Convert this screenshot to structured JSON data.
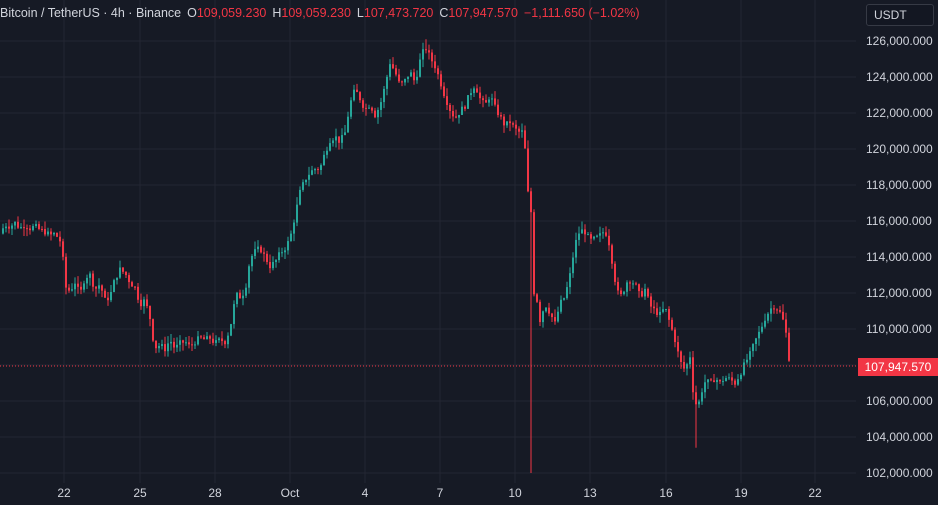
{
  "legend": {
    "symbol": "Bitcoin / TetherUS · 4h · Binance",
    "open_key": "O",
    "open": "109,059.230",
    "high_key": "H",
    "high": "109,059.230",
    "low_key": "L",
    "low": "107,473.720",
    "close_key": "C",
    "close": "107,947.570",
    "change": "−1,111.650 (−1.02%)"
  },
  "currency_button": "USDT",
  "last_price_label": "107,947.570",
  "colors": {
    "background": "#161a25",
    "up": "#26a69a",
    "down": "#f23645",
    "grid": "#232632",
    "axis_text": "#d1d4dc"
  },
  "chart_data": {
    "type": "candlestick",
    "y_axis_ticks": [
      "126,000.000",
      "124,000.000",
      "122,000.000",
      "120,000.000",
      "118,000.000",
      "116,000.000",
      "114,000.000",
      "112,000.000",
      "110,000.000",
      "108,000.000",
      "106,000.000",
      "104,000.000",
      "102,000.000"
    ],
    "x_axis_ticks": [
      "22",
      "25",
      "28",
      "Oct",
      "4",
      "7",
      "10",
      "13",
      "16",
      "19",
      "22"
    ],
    "ylim": [
      101200,
      127300
    ],
    "last_price": 107947.57,
    "price_path_close": [
      [
        0,
        115300
      ],
      [
        5,
        115800
      ],
      [
        10,
        115700
      ],
      [
        15,
        115900
      ],
      [
        20,
        115600
      ],
      [
        25,
        115800
      ],
      [
        30,
        115600
      ],
      [
        35,
        115700
      ],
      [
        40,
        115500
      ],
      [
        45,
        115400
      ],
      [
        50,
        115200
      ],
      [
        55,
        115300
      ],
      [
        60,
        114900
      ],
      [
        64,
        113500
      ],
      [
        66,
        112300
      ],
      [
        70,
        112100
      ],
      [
        75,
        112600
      ],
      [
        80,
        111900
      ],
      [
        85,
        112900
      ],
      [
        90,
        113000
      ],
      [
        95,
        112200
      ],
      [
        100,
        112500
      ],
      [
        105,
        111600
      ],
      [
        110,
        111800
      ],
      [
        115,
        112800
      ],
      [
        120,
        113300
      ],
      [
        125,
        113100
      ],
      [
        130,
        112600
      ],
      [
        135,
        112300
      ],
      [
        140,
        111400
      ],
      [
        145,
        111600
      ],
      [
        150,
        110600
      ],
      [
        153,
        109500
      ],
      [
        156,
        109000
      ],
      [
        160,
        109100
      ],
      [
        165,
        108900
      ],
      [
        170,
        109400
      ],
      [
        175,
        108900
      ],
      [
        180,
        109200
      ],
      [
        185,
        109300
      ],
      [
        190,
        109000
      ],
      [
        195,
        109300
      ],
      [
        200,
        109500
      ],
      [
        205,
        109400
      ],
      [
        210,
        109500
      ],
      [
        215,
        109200
      ],
      [
        220,
        109400
      ],
      [
        225,
        109300
      ],
      [
        230,
        110000
      ],
      [
        233,
        111000
      ],
      [
        236,
        111900
      ],
      [
        240,
        111800
      ],
      [
        245,
        112100
      ],
      [
        250,
        113900
      ],
      [
        255,
        114300
      ],
      [
        260,
        114500
      ],
      [
        265,
        114000
      ],
      [
        270,
        113500
      ],
      [
        275,
        113700
      ],
      [
        280,
        114200
      ],
      [
        285,
        114500
      ],
      [
        290,
        115000
      ],
      [
        295,
        116300
      ],
      [
        300,
        117600
      ],
      [
        305,
        118300
      ],
      [
        310,
        118700
      ],
      [
        315,
        118900
      ],
      [
        320,
        118900
      ],
      [
        325,
        119800
      ],
      [
        330,
        120500
      ],
      [
        335,
        120700
      ],
      [
        340,
        120400
      ],
      [
        345,
        120900
      ],
      [
        350,
        122500
      ],
      [
        355,
        123300
      ],
      [
        360,
        122800
      ],
      [
        365,
        122200
      ],
      [
        370,
        122500
      ],
      [
        375,
        121900
      ],
      [
        380,
        122400
      ],
      [
        385,
        123500
      ],
      [
        390,
        124800
      ],
      [
        395,
        124300
      ],
      [
        400,
        123500
      ],
      [
        405,
        123800
      ],
      [
        410,
        124300
      ],
      [
        415,
        123700
      ],
      [
        420,
        124900
      ],
      [
        425,
        125700
      ],
      [
        430,
        125100
      ],
      [
        435,
        124600
      ],
      [
        440,
        123800
      ],
      [
        445,
        122900
      ],
      [
        450,
        122200
      ],
      [
        455,
        121700
      ],
      [
        460,
        122100
      ],
      [
        465,
        122400
      ],
      [
        470,
        123100
      ],
      [
        475,
        123600
      ],
      [
        480,
        122800
      ],
      [
        485,
        122400
      ],
      [
        490,
        123000
      ],
      [
        495,
        122300
      ],
      [
        500,
        121800
      ],
      [
        505,
        121300
      ],
      [
        510,
        121500
      ],
      [
        515,
        121100
      ],
      [
        520,
        120900
      ],
      [
        524,
        121000
      ],
      [
        527,
        117900
      ],
      [
        531,
        116500
      ],
      [
        533,
        112200
      ],
      [
        537,
        111600
      ],
      [
        540,
        110500
      ],
      [
        545,
        111400
      ],
      [
        550,
        110900
      ],
      [
        555,
        110300
      ],
      [
        560,
        111400
      ],
      [
        565,
        111800
      ],
      [
        570,
        113000
      ],
      [
        575,
        114700
      ],
      [
        580,
        115500
      ],
      [
        585,
        115400
      ],
      [
        590,
        114900
      ],
      [
        595,
        115000
      ],
      [
        600,
        115200
      ],
      [
        605,
        115500
      ],
      [
        610,
        114600
      ],
      [
        614,
        113000
      ],
      [
        618,
        112000
      ],
      [
        622,
        111800
      ],
      [
        626,
        112600
      ],
      [
        630,
        112700
      ],
      [
        635,
        112500
      ],
      [
        640,
        111800
      ],
      [
        645,
        112200
      ],
      [
        650,
        111300
      ],
      [
        655,
        111000
      ],
      [
        660,
        110800
      ],
      [
        665,
        111200
      ],
      [
        670,
        110300
      ],
      [
        675,
        109400
      ],
      [
        680,
        108200
      ],
      [
        685,
        107700
      ],
      [
        690,
        108500
      ],
      [
        694,
        106000
      ],
      [
        698,
        105700
      ],
      [
        702,
        106600
      ],
      [
        706,
        107200
      ],
      [
        710,
        106900
      ],
      [
        715,
        107300
      ],
      [
        720,
        107000
      ],
      [
        725,
        107300
      ],
      [
        730,
        107200
      ],
      [
        735,
        107000
      ],
      [
        740,
        107500
      ],
      [
        745,
        108100
      ],
      [
        750,
        108600
      ],
      [
        755,
        109300
      ],
      [
        760,
        109900
      ],
      [
        765,
        110600
      ],
      [
        770,
        111100
      ],
      [
        775,
        111300
      ],
      [
        780,
        110900
      ],
      [
        785,
        110200
      ],
      [
        790,
        107950
      ]
    ]
  }
}
